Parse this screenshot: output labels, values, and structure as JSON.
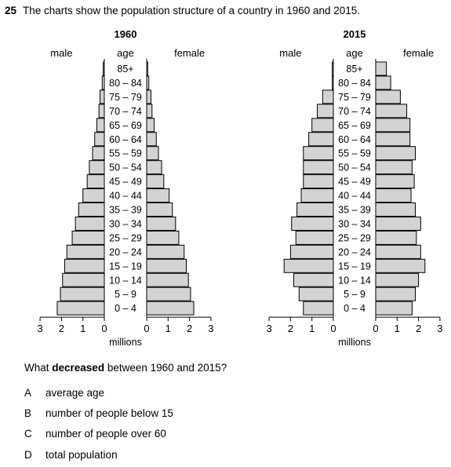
{
  "question": {
    "number": "25",
    "text": "The charts show the population structure of a country in 1960 and 2015.",
    "prompt_pre": "What ",
    "prompt_bold": "decreased",
    "prompt_post": " between 1960 and 2015?",
    "options": [
      {
        "letter": "A",
        "text": "average age"
      },
      {
        "letter": "B",
        "text": "number of people below 15"
      },
      {
        "letter": "C",
        "text": "number of people over 60"
      },
      {
        "letter": "D",
        "text": "total population"
      }
    ]
  },
  "chart_data": [
    {
      "type": "bar",
      "title": "1960",
      "left_label": "male",
      "center_label": "age",
      "right_label": "female",
      "xlabel": "millions",
      "categories": [
        "85+",
        "80 – 84",
        "75 – 79",
        "70 – 74",
        "65 – 69",
        "60 – 64",
        "55 – 59",
        "50 – 54",
        "45 – 49",
        "40 – 44",
        "35 – 39",
        "30 – 34",
        "25 – 29",
        "20 – 24",
        "15 – 19",
        "10 – 14",
        "5 – 9",
        "0 – 4"
      ],
      "xticks": [
        "3",
        "2",
        "1",
        "0"
      ],
      "xlim": [
        0,
        3
      ],
      "series": [
        {
          "name": "male",
          "values": [
            0.05,
            0.1,
            0.2,
            0.25,
            0.35,
            0.45,
            0.55,
            0.7,
            0.8,
            1.0,
            1.2,
            1.35,
            1.5,
            1.75,
            1.85,
            1.95,
            2.05,
            2.2
          ]
        },
        {
          "name": "female",
          "values": [
            0.05,
            0.1,
            0.2,
            0.25,
            0.35,
            0.45,
            0.55,
            0.7,
            0.8,
            1.05,
            1.2,
            1.35,
            1.5,
            1.75,
            1.85,
            1.95,
            2.05,
            2.2
          ]
        }
      ]
    },
    {
      "type": "bar",
      "title": "2015",
      "left_label": "male",
      "center_label": "age",
      "right_label": "female",
      "xlabel": "millions",
      "categories": [
        "85+",
        "80 – 84",
        "75 – 79",
        "70 – 74",
        "65 – 69",
        "60 – 64",
        "55 – 59",
        "50 – 54",
        "45 – 49",
        "40 – 44",
        "35 – 39",
        "30 – 34",
        "25 – 29",
        "20 – 24",
        "15 – 19",
        "10 – 14",
        "5 – 9",
        "0 – 4"
      ],
      "xticks": [
        "3",
        "2",
        "1",
        "0"
      ],
      "xlim": [
        0,
        3
      ],
      "series": [
        {
          "name": "male",
          "values": [
            0.05,
            0.05,
            0.5,
            0.75,
            1.0,
            1.15,
            1.4,
            1.4,
            1.4,
            1.5,
            1.7,
            1.95,
            1.75,
            2.0,
            2.3,
            1.85,
            1.6,
            1.4
          ]
        },
        {
          "name": "female",
          "values": [
            0.5,
            0.7,
            1.15,
            1.45,
            1.6,
            1.6,
            1.85,
            1.7,
            1.8,
            1.65,
            1.85,
            2.1,
            1.9,
            2.1,
            2.3,
            2.0,
            1.85,
            1.7
          ]
        }
      ]
    }
  ]
}
